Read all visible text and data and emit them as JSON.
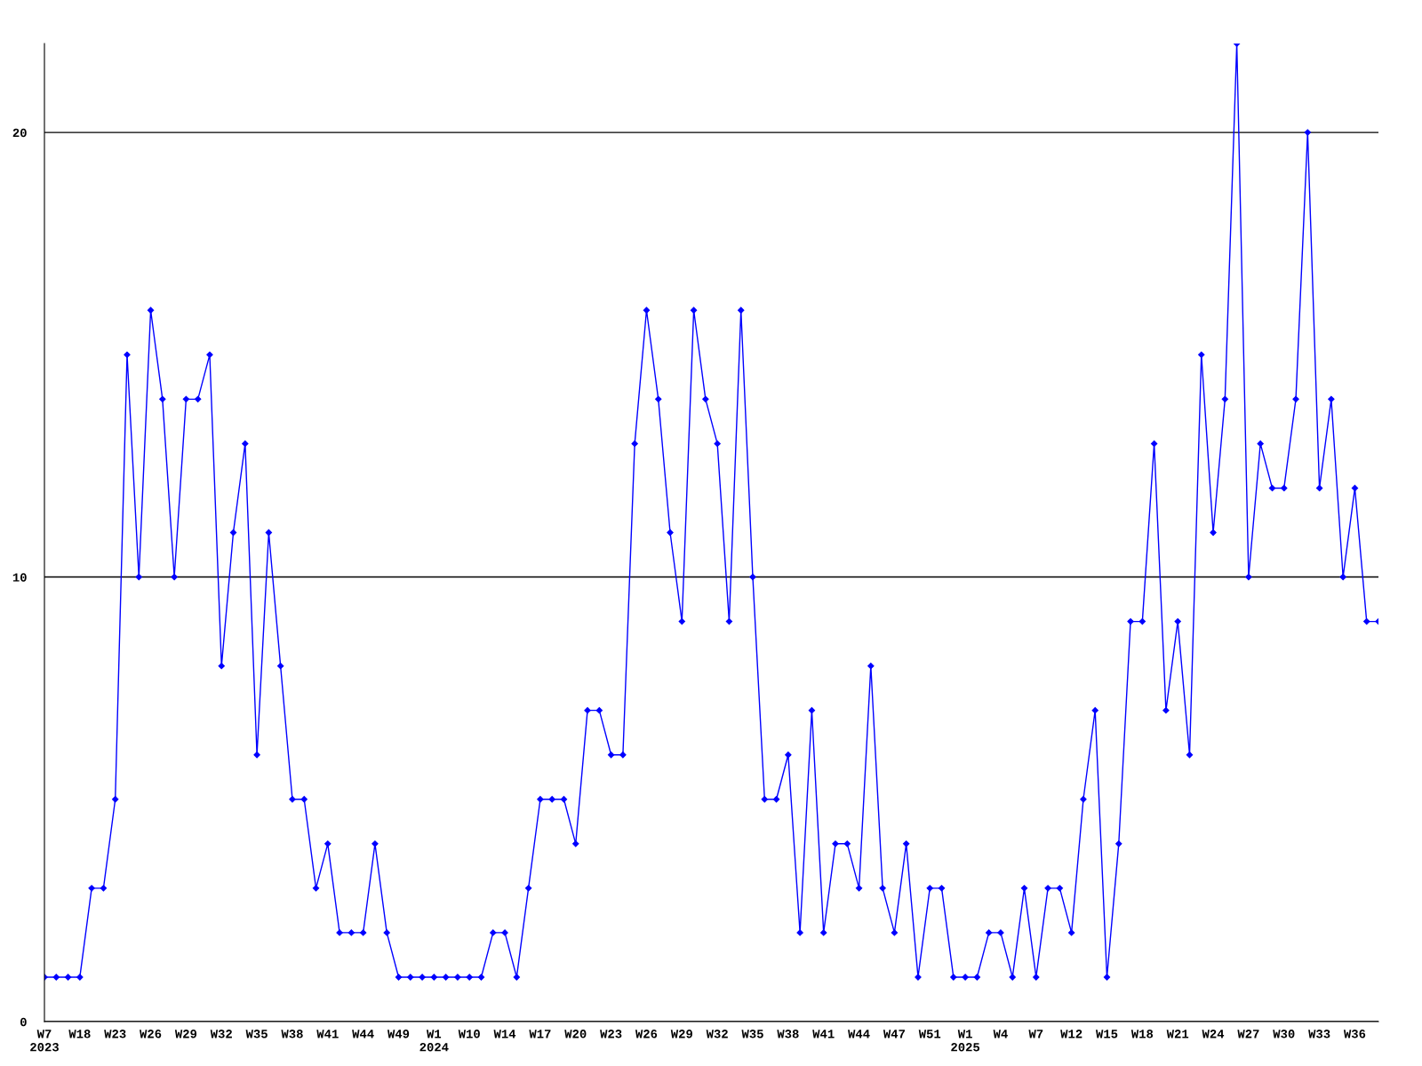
{
  "chart_data": {
    "type": "line",
    "categories": [
      "W7\n2023",
      null,
      null,
      "W18",
      null,
      null,
      "W23",
      null,
      null,
      "W26",
      null,
      null,
      "W29",
      null,
      null,
      "W32",
      null,
      null,
      "W35",
      null,
      null,
      "W38",
      null,
      null,
      "W41",
      null,
      null,
      "W44",
      null,
      null,
      "W49",
      null,
      null,
      "W1\n2024",
      null,
      null,
      "W10",
      null,
      null,
      "W14",
      null,
      null,
      "W17",
      null,
      null,
      "W20",
      null,
      null,
      "W23",
      null,
      null,
      "W26",
      null,
      null,
      "W29",
      null,
      null,
      "W32",
      null,
      null,
      "W35",
      null,
      null,
      "W38",
      null,
      null,
      "W41",
      null,
      null,
      "W44",
      null,
      null,
      "W47",
      null,
      null,
      "W51",
      null,
      null,
      "W1\n2025",
      null,
      null,
      "W4",
      null,
      null,
      "W7",
      null,
      null,
      "W12",
      null,
      null,
      "W15",
      null,
      null,
      "W18",
      null,
      null,
      "W21",
      null,
      null,
      "W24",
      null,
      null,
      "W27",
      null,
      null,
      "W30",
      null,
      null,
      "W33",
      null,
      null,
      "W36",
      null,
      null
    ],
    "values": [
      1,
      1,
      1,
      1,
      3,
      3,
      5,
      15,
      10,
      16,
      14,
      10,
      14,
      14,
      15,
      8,
      11,
      13,
      6,
      11,
      8,
      5,
      5,
      3,
      4,
      2,
      2,
      2,
      4,
      2,
      1,
      1,
      1,
      1,
      1,
      1,
      1,
      1,
      2,
      2,
      1,
      3,
      5,
      5,
      5,
      4,
      7,
      7,
      6,
      6,
      13,
      16,
      14,
      11,
      9,
      16,
      14,
      13,
      9,
      16,
      10,
      5,
      5,
      6,
      2,
      7,
      2,
      4,
      4,
      3,
      8,
      3,
      2,
      4,
      1,
      3,
      3,
      1,
      1,
      1,
      2,
      2,
      1,
      3,
      1,
      3,
      3,
      2,
      5,
      7,
      1,
      4,
      9,
      9,
      13,
      7,
      9,
      6,
      15,
      11,
      14,
      22,
      10,
      13,
      12,
      12,
      14,
      20,
      12,
      14,
      10,
      12,
      9,
      9
    ],
    "color": "#0000ff",
    "ylim": [
      0,
      22
    ],
    "yticks": [
      0,
      10,
      20
    ],
    "grid": "y",
    "marker": "diamond"
  }
}
